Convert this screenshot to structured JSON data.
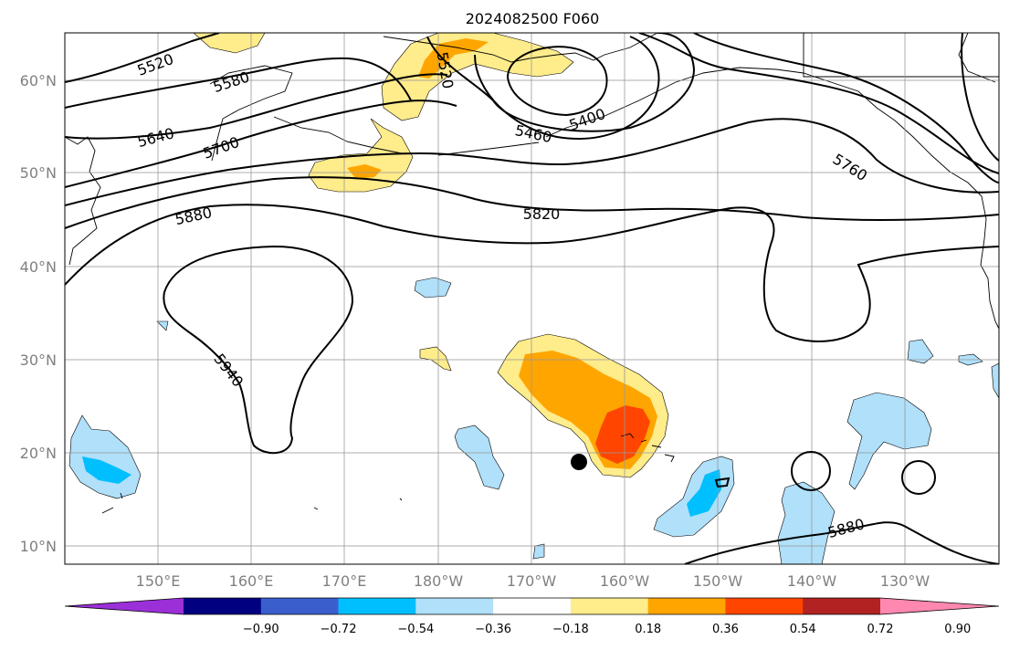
{
  "title": "2024082500 F060",
  "lat_labels": [
    "60°N",
    "50°N",
    "40°N",
    "30°N",
    "20°N",
    "10°N"
  ],
  "lon_labels": [
    "150°E",
    "160°E",
    "170°E",
    "180°W",
    "170°W",
    "160°W",
    "150°W",
    "140°W",
    "130°W"
  ],
  "contour_labels": [
    "5520",
    "5580",
    "5640",
    "5700",
    "5880",
    "5520",
    "5460",
    "5400",
    "5820",
    "5760",
    "5940",
    "5880"
  ],
  "colorbar": {
    "ticks": [
      "−0.90",
      "−0.72",
      "−0.54",
      "−0.36",
      "−0.18",
      "0.18",
      "0.36",
      "0.54",
      "0.72",
      "0.90"
    ],
    "colors": [
      "#9b30d9",
      "#000080",
      "#3a5fcd",
      "#00bfff",
      "#b0e0fa",
      "#ffffff",
      "#ffec8b",
      "#ffa500",
      "#ff4500",
      "#b22222",
      "#ff88b0"
    ]
  },
  "colors": {
    "pos1": "#ffec8b",
    "pos2": "#ffa500",
    "pos3": "#ff4500",
    "neg1": "#b0e0fa",
    "neg2": "#00bfff"
  },
  "marker": "black-dot"
}
